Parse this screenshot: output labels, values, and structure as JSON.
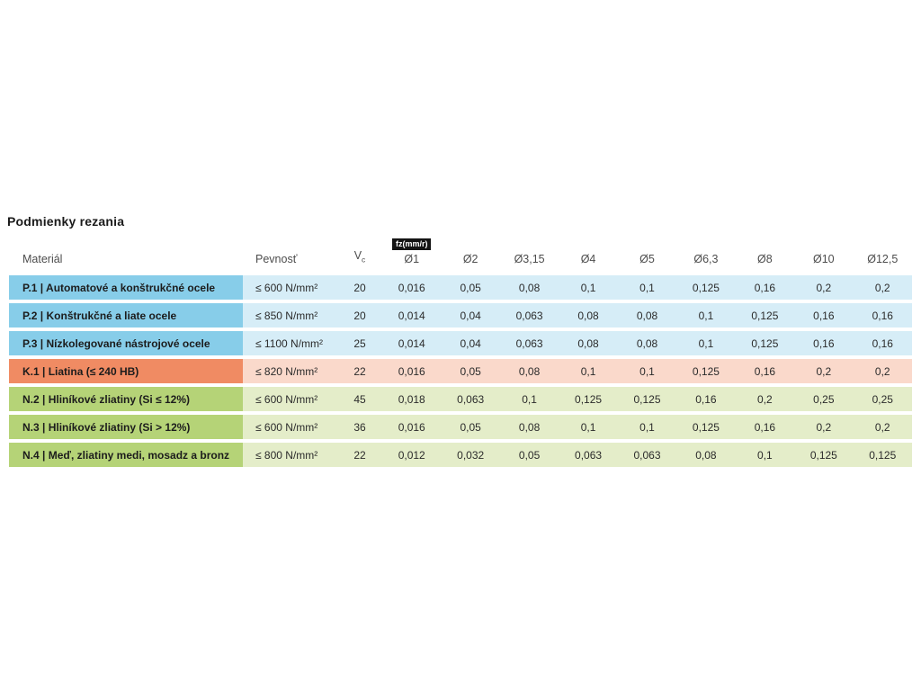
{
  "title": "Podmienky rezania",
  "table": {
    "headers": {
      "material": "Materiál",
      "strength": "Pevnosť",
      "vc_main": "V",
      "vc_sub": "c",
      "fz_badge": "fz(mm/r)",
      "diameters": [
        "Ø1",
        "Ø2",
        "Ø3,15",
        "Ø4",
        "Ø5",
        "Ø6,3",
        "Ø8",
        "Ø10",
        "Ø12,5"
      ]
    },
    "groups": {
      "steel": {
        "cell": "#87CDE9",
        "row": "#D6EDF7"
      },
      "cast_iron": {
        "cell": "#F08B63",
        "row": "#FAD9CB"
      },
      "non_ferrous": {
        "cell": "#B5D377",
        "row": "#E4EDC9"
      }
    },
    "badge_colors": {
      "background": "#141414",
      "text": "#ffffff"
    },
    "rows": [
      {
        "group": "steel",
        "material": "P.1 | Automatové a konštrukčné ocele",
        "strength": "≤ 600 N/mm²",
        "vc": "20",
        "values": [
          "0,016",
          "0,05",
          "0,08",
          "0,1",
          "0,1",
          "0,125",
          "0,16",
          "0,2",
          "0,2"
        ]
      },
      {
        "group": "steel",
        "material": "P.2 | Konštrukčné a liate ocele",
        "strength": "≤ 850 N/mm²",
        "vc": "20",
        "values": [
          "0,014",
          "0,04",
          "0,063",
          "0,08",
          "0,08",
          "0,1",
          "0,125",
          "0,16",
          "0,16"
        ]
      },
      {
        "group": "steel",
        "material": "P.3 | Nízkolegované nástrojové ocele",
        "strength": "≤ 1100 N/mm²",
        "vc": "25",
        "values": [
          "0,014",
          "0,04",
          "0,063",
          "0,08",
          "0,08",
          "0,1",
          "0,125",
          "0,16",
          "0,16"
        ]
      },
      {
        "group": "cast_iron",
        "material": "K.1 | Liatina (≤ 240 HB)",
        "strength": "≤ 820 N/mm²",
        "vc": "22",
        "values": [
          "0,016",
          "0,05",
          "0,08",
          "0,1",
          "0,1",
          "0,125",
          "0,16",
          "0,2",
          "0,2"
        ]
      },
      {
        "group": "non_ferrous",
        "material": "N.2 | Hliníkové zliatiny (Si ≤ 12%)",
        "strength": "≤ 600 N/mm²",
        "vc": "45",
        "values": [
          "0,018",
          "0,063",
          "0,1",
          "0,125",
          "0,125",
          "0,16",
          "0,2",
          "0,25",
          "0,25"
        ]
      },
      {
        "group": "non_ferrous",
        "material": "N.3 | Hliníkové zliatiny (Si > 12%)",
        "strength": "≤ 600 N/mm²",
        "vc": "36",
        "values": [
          "0,016",
          "0,05",
          "0,08",
          "0,1",
          "0,1",
          "0,125",
          "0,16",
          "0,2",
          "0,2"
        ]
      },
      {
        "group": "non_ferrous",
        "material": "N.4 | Meď, zliatiny medi, mosadz a bronz",
        "strength": "≤ 800 N/mm²",
        "vc": "22",
        "values": [
          "0,012",
          "0,032",
          "0,05",
          "0,063",
          "0,063",
          "0,08",
          "0,1",
          "0,125",
          "0,125"
        ]
      }
    ]
  }
}
